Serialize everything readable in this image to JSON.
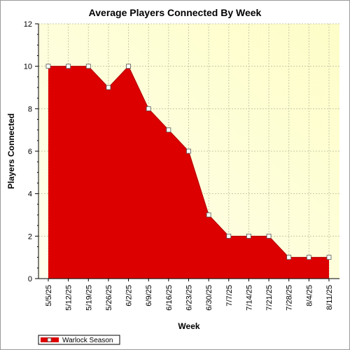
{
  "chart_data": {
    "type": "area",
    "title": "Average Players Connected By Week",
    "xlabel": "Week",
    "ylabel": "Players Connected",
    "categories": [
      "5/5/25",
      "5/12/25",
      "5/19/25",
      "5/26/25",
      "6/2/25",
      "6/9/25",
      "6/16/25",
      "6/23/25",
      "6/30/25",
      "7/7/25",
      "7/14/25",
      "7/21/25",
      "7/28/25",
      "8/4/25",
      "8/11/25"
    ],
    "series": [
      {
        "name": "Warlock Season",
        "values": [
          10,
          10,
          10,
          9,
          10,
          8,
          7,
          6,
          3,
          2,
          2,
          2,
          1,
          1,
          1
        ]
      }
    ],
    "ylim": [
      0,
      12
    ],
    "yticks": [
      0,
      2,
      4,
      6,
      8,
      10,
      12
    ],
    "grid": true,
    "legend": "bottom-left",
    "colors": {
      "series_fill": "#dd0000",
      "series_line": "#b00000",
      "plot_bg_light": "#ffffee",
      "plot_bg_dark": "#fdfdc8",
      "marker_fill": "#ffffff"
    }
  }
}
